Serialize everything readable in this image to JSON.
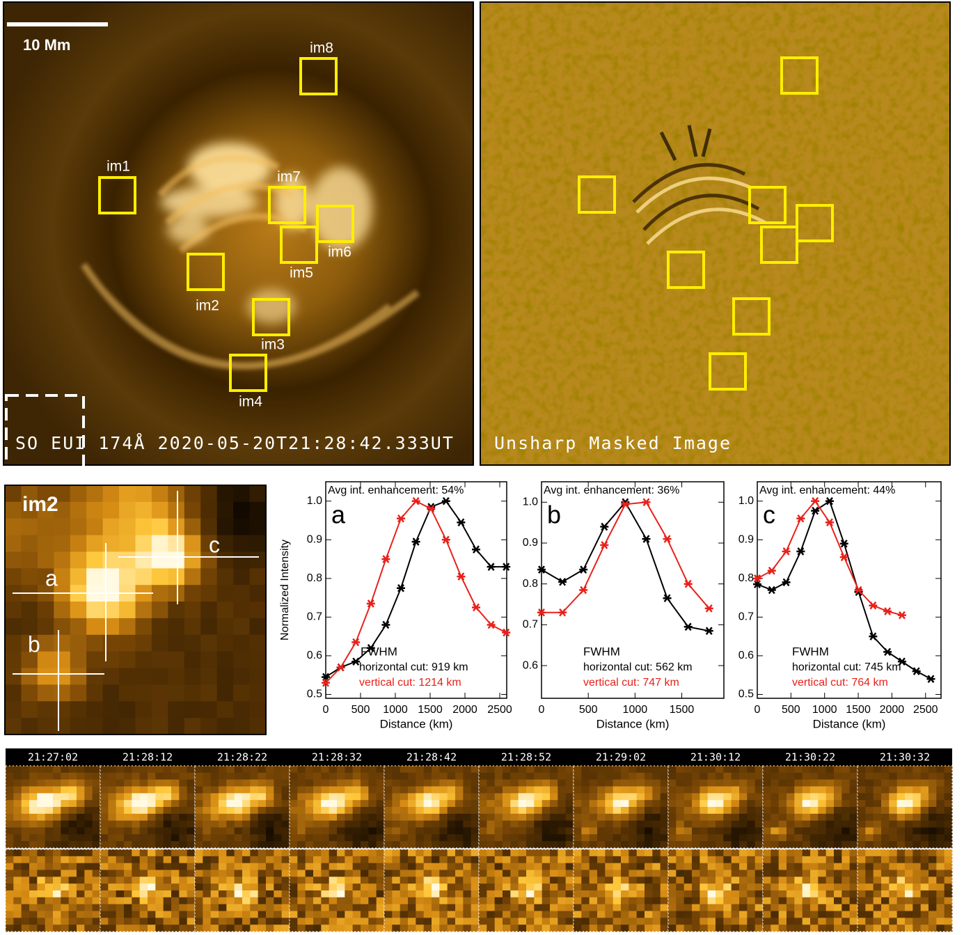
{
  "images": {
    "left": {
      "scale_bar": "10 Mm",
      "caption": "SO EUI 174Å 2020-05-20T21:28:42.333UT",
      "boxes": [
        "im1",
        "im2",
        "im3",
        "im4",
        "im5",
        "im6",
        "im7",
        "im8"
      ]
    },
    "right": {
      "caption": "Unsharp Masked Image"
    },
    "inset": {
      "title": "im2",
      "points": [
        "a",
        "b",
        "c"
      ]
    }
  },
  "chart_data": [
    {
      "type": "line",
      "panel": "a",
      "title": "Avg int. enhancement: 54%",
      "ylabel": "Normalized Intensity",
      "xlabel": "Distance (km)",
      "xlim": [
        0,
        2600
      ],
      "ylim": [
        0.49,
        1.05
      ],
      "xticks": [
        0,
        500,
        1000,
        1500,
        2000,
        2500
      ],
      "yticks": [
        0.5,
        0.6,
        0.7,
        0.8,
        0.9,
        {
          "value": 1,
          "label": "1.0"
        }
      ],
      "fwhm": {
        "label": "FWHM",
        "horizontal": "horizontal cut: 919 km",
        "vertical": "vertical cut: 1214 km"
      },
      "series": [
        {
          "color": "#000000",
          "x": [
            0,
            216,
            432,
            648,
            864,
            1080,
            1296,
            1512,
            1728,
            1944,
            2160,
            2376,
            2592
          ],
          "values": [
            0.545,
            0.57,
            0.585,
            0.62,
            0.68,
            0.775,
            0.895,
            0.985,
            1.0,
            0.945,
            0.875,
            0.83,
            0.83
          ]
        },
        {
          "color": "#e8211a",
          "x": [
            0,
            216,
            432,
            648,
            864,
            1080,
            1296,
            1512,
            1728,
            1944,
            2160,
            2376,
            2592
          ],
          "values": [
            0.53,
            0.57,
            0.635,
            0.735,
            0.85,
            0.955,
            1.0,
            0.98,
            0.9,
            0.805,
            0.725,
            0.68,
            0.66
          ]
        }
      ]
    },
    {
      "type": "line",
      "panel": "b",
      "title": "Avg int. enhancement: 36%",
      "xlabel": "Distance (km)",
      "xlim": [
        0,
        1950
      ],
      "ylim": [
        0.52,
        1.05
      ],
      "xticks": [
        0,
        500,
        1000,
        1500
      ],
      "yticks": [
        0.6,
        0.7,
        0.8,
        0.9,
        {
          "value": 1,
          "label": "1.0"
        }
      ],
      "fwhm": {
        "label": "FWHM",
        "horizontal": "horizontal cut: 562 km",
        "vertical": "vertical cut: 747 km"
      },
      "series": [
        {
          "color": "#000000",
          "x": [
            0,
            224,
            448,
            672,
            896,
            1120,
            1344,
            1568,
            1792
          ],
          "values": [
            0.835,
            0.805,
            0.835,
            0.94,
            1.0,
            0.91,
            0.765,
            0.695,
            0.685
          ]
        },
        {
          "color": "#e8211a",
          "x": [
            0,
            224,
            448,
            672,
            896,
            1120,
            1344,
            1568,
            1792
          ],
          "values": [
            0.73,
            0.73,
            0.785,
            0.895,
            0.995,
            1.0,
            0.91,
            0.8,
            0.74
          ]
        }
      ]
    },
    {
      "type": "line",
      "panel": "c",
      "title": "Avg int. enhancement: 44%",
      "xlabel": "Distance (km)",
      "xlim": [
        0,
        2730
      ],
      "ylim": [
        0.49,
        1.05
      ],
      "xticks": [
        0,
        500,
        1000,
        1500,
        2000,
        2500
      ],
      "yticks": [
        0.5,
        0.6,
        0.7,
        0.8,
        0.9,
        {
          "value": 1,
          "label": "1.0"
        }
      ],
      "fwhm": {
        "label": "FWHM",
        "horizontal": "horizontal cut: 745 km",
        "vertical": "vertical cut: 764 km"
      },
      "series": [
        {
          "color": "#000000",
          "x": [
            0,
            215,
            430,
            645,
            860,
            1075,
            1290,
            1505,
            1720,
            1935,
            2150,
            2365,
            2580
          ],
          "values": [
            0.785,
            0.77,
            0.79,
            0.87,
            0.975,
            1.0,
            0.89,
            0.765,
            0.65,
            0.61,
            0.585,
            0.56,
            0.54
          ]
        },
        {
          "color": "#e8211a",
          "x": [
            0,
            215,
            430,
            645,
            860,
            1075,
            1290,
            1505,
            1720,
            1935,
            2150
          ],
          "values": [
            0.8,
            0.82,
            0.87,
            0.955,
            1.0,
            0.945,
            0.855,
            0.77,
            0.73,
            0.715,
            0.705
          ]
        }
      ]
    }
  ],
  "timeline": {
    "times": [
      "21:27:02",
      "21:28:12",
      "21:28:22",
      "21:28:32",
      "21:28:42",
      "21:28:52",
      "21:29:02",
      "21:30:12",
      "21:30:22",
      "21:30:32"
    ]
  }
}
